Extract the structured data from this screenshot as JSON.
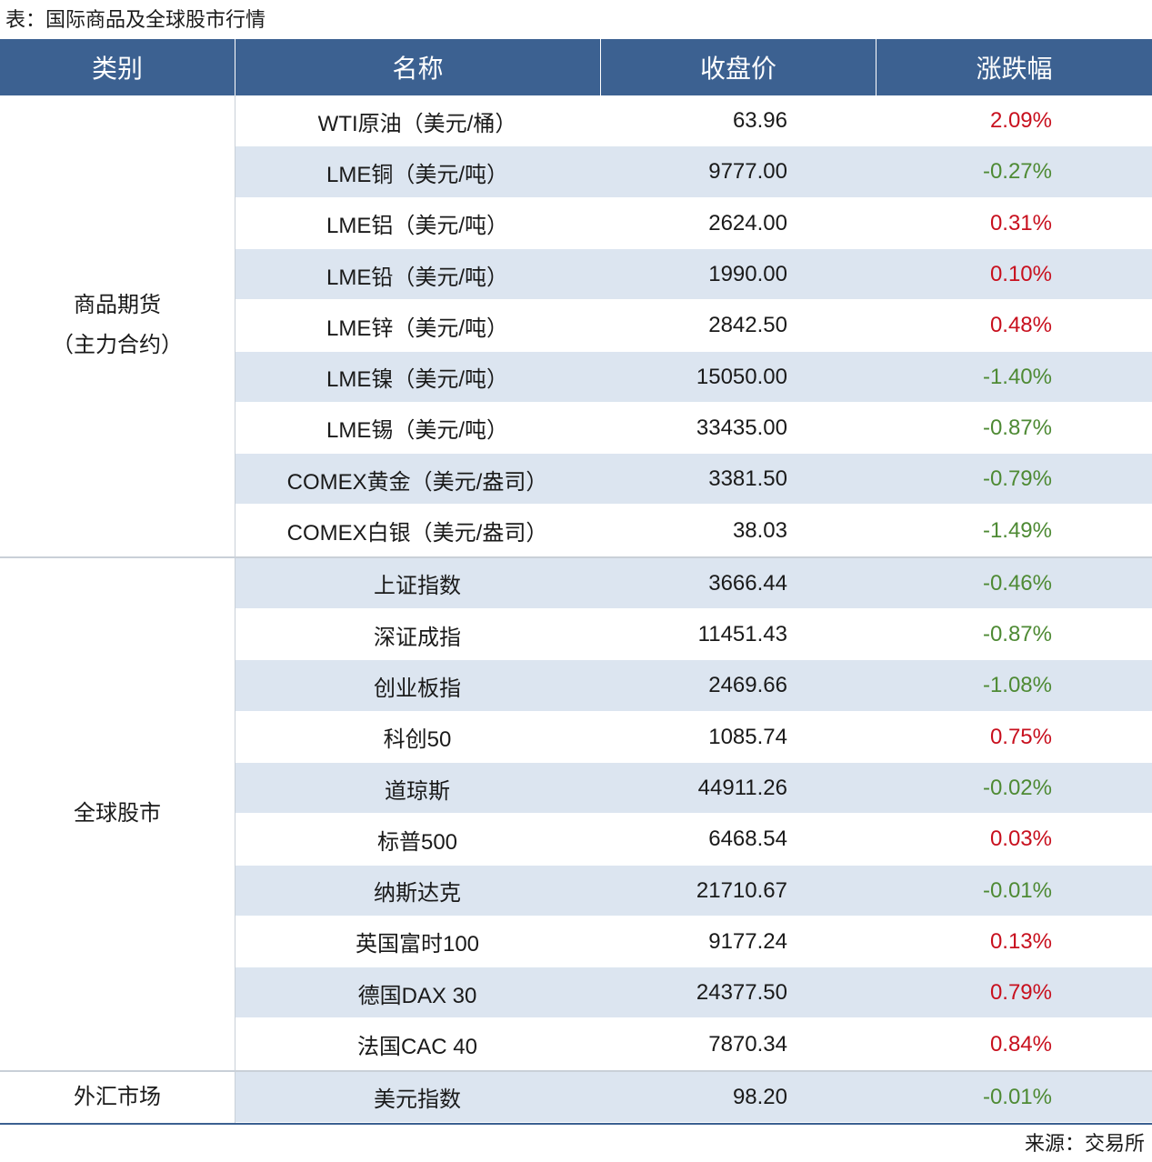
{
  "title": "表：国际商品及全球股市行情",
  "header": [
    "类别",
    "名称",
    "收盘价",
    "涨跌幅"
  ],
  "groups": [
    {
      "category": [
        "商品期货",
        "（主力合约）"
      ],
      "rows": [
        [
          "WTI原油（美元/桶）",
          "63.96",
          "2.09%"
        ],
        [
          "LME铜（美元/吨）",
          "9777.00",
          "-0.27%"
        ],
        [
          "LME铝（美元/吨）",
          "2624.00",
          "0.31%"
        ],
        [
          "LME铅（美元/吨）",
          "1990.00",
          "0.10%"
        ],
        [
          "LME锌（美元/吨）",
          "2842.50",
          "0.48%"
        ],
        [
          "LME镍（美元/吨）",
          "15050.00",
          "-1.40%"
        ],
        [
          "LME锡（美元/吨）",
          "33435.00",
          "-0.87%"
        ],
        [
          "COMEX黄金（美元/盎司）",
          "3381.50",
          "-0.79%"
        ],
        [
          "COMEX白银（美元/盎司）",
          "38.03",
          "-1.49%"
        ]
      ]
    },
    {
      "category": [
        "全球股市"
      ],
      "rows": [
        [
          "上证指数",
          "3666.44",
          "-0.46%"
        ],
        [
          "深证成指",
          "11451.43",
          "-0.87%"
        ],
        [
          "创业板指",
          "2469.66",
          "-1.08%"
        ],
        [
          "科创50",
          "1085.74",
          "0.75%"
        ],
        [
          "道琼斯",
          "44911.26",
          "-0.02%"
        ],
        [
          "标普500",
          "6468.54",
          "0.03%"
        ],
        [
          "纳斯达克",
          "21710.67",
          "-0.01%"
        ],
        [
          "英国富时100",
          "9177.24",
          "0.13%"
        ],
        [
          "德国DAX 30",
          "24377.50",
          "0.79%"
        ],
        [
          "法国CAC 40",
          "7870.34",
          "0.84%"
        ]
      ]
    },
    {
      "category": [
        "外汇市场"
      ],
      "rows": [
        [
          "美元指数",
          "98.20",
          "-0.01%"
        ]
      ]
    }
  ],
  "source": "来源：交易所"
}
